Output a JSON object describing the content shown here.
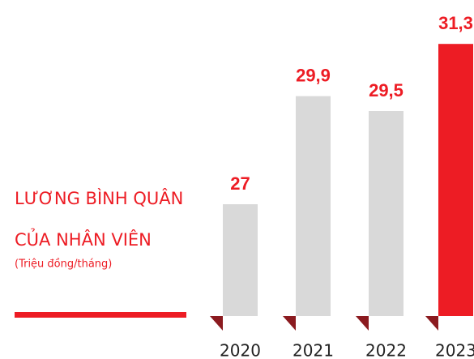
{
  "chart_data": {
    "type": "bar",
    "title_lines": [
      "LƯƠNG BÌNH QUÂN",
      "CỦA NHÂN VIÊN"
    ],
    "subtitle": "(Triệu đồng/tháng)",
    "categories": [
      "2020",
      "2021",
      "2022",
      "2023"
    ],
    "values": [
      27,
      29.9,
      29.5,
      31.3
    ],
    "value_labels": [
      "27",
      "29,9",
      "29,5",
      "31,3"
    ],
    "colors": [
      "#d9d9d9",
      "#d9d9d9",
      "#d9d9d9",
      "#ed1c24"
    ],
    "ylim": [
      24,
      32
    ]
  }
}
